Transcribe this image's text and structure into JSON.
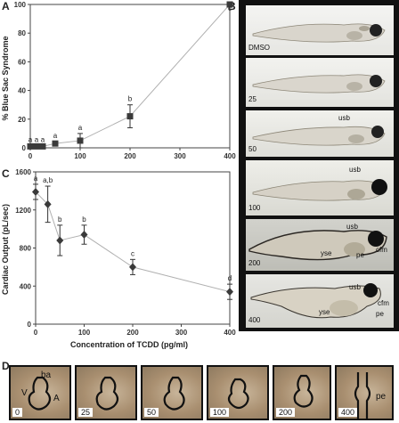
{
  "chart_data": [
    {
      "type": "scatter",
      "panel": "A",
      "xlabel": "",
      "ylabel": "% Blue Sac Syndrome",
      "x": [
        0,
        12.5,
        25,
        50,
        100,
        200,
        400
      ],
      "y": [
        1,
        1,
        1,
        3,
        5,
        22,
        100
      ],
      "yerr": [
        0.5,
        0.5,
        0.5,
        1.5,
        5,
        8,
        0
      ],
      "letters": [
        "a",
        "a",
        "a",
        "a",
        "a",
        "b",
        "c"
      ],
      "xlim": [
        0,
        400
      ],
      "ylim": [
        0,
        100
      ],
      "xticks": [
        0,
        100,
        200,
        300,
        400
      ],
      "yticks": [
        0,
        20,
        40,
        60,
        80,
        100
      ],
      "marker": "square",
      "grid": false
    },
    {
      "type": "scatter",
      "panel": "C",
      "xlabel": "Concentration of TCDD (pg/ml)",
      "ylabel": "Cardiac Output (pL/sec)",
      "x": [
        0,
        25,
        50,
        100,
        200,
        400
      ],
      "y": [
        1390,
        1260,
        880,
        940,
        600,
        340
      ],
      "yerr": [
        80,
        190,
        160,
        100,
        80,
        80
      ],
      "letters": [
        "a",
        "a,b",
        "b",
        "b",
        "c",
        "d"
      ],
      "xlim": [
        0,
        400
      ],
      "ylim": [
        0,
        1600
      ],
      "xticks": [
        0,
        100,
        200,
        300,
        400
      ],
      "yticks": [
        0,
        400,
        800,
        1200,
        1600
      ],
      "marker": "diamond",
      "grid": false
    }
  ],
  "panels": {
    "A": "A",
    "B": "B",
    "C": "C",
    "D": "D"
  },
  "panelB": {
    "strips": [
      {
        "label": "DMSO",
        "annotations": []
      },
      {
        "label": "25",
        "annotations": []
      },
      {
        "label": "50",
        "annotations": [
          "usb"
        ]
      },
      {
        "label": "100",
        "annotations": [
          "usb"
        ]
      },
      {
        "label": "200",
        "annotations": [
          "usb",
          "yse",
          "pe",
          "cfm"
        ]
      },
      {
        "label": "400",
        "annotations": [
          "usb",
          "yse",
          "cfm",
          "pe"
        ]
      }
    ]
  },
  "panelD": {
    "hearts": [
      {
        "label": "0",
        "annotations": [
          "ba",
          "V",
          "A"
        ]
      },
      {
        "label": "25",
        "annotations": []
      },
      {
        "label": "50",
        "annotations": []
      },
      {
        "label": "100",
        "annotations": []
      },
      {
        "label": "200",
        "annotations": []
      },
      {
        "label": "400",
        "annotations": [
          "pe"
        ]
      }
    ]
  },
  "colors": {
    "marker": "#3a3a3a",
    "connector": "#b0b0b0",
    "frame": "#111111"
  }
}
